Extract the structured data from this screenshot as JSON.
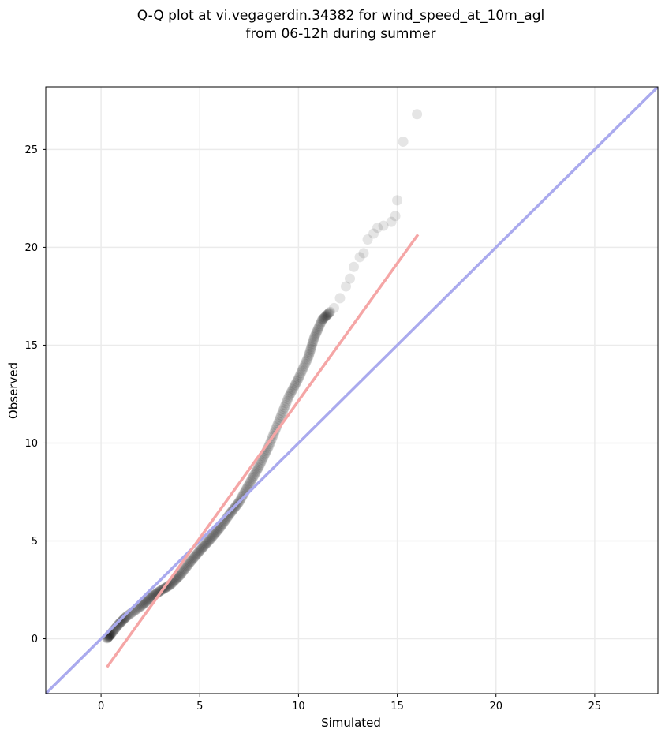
{
  "chart_data": {
    "type": "scatter",
    "title": [
      "Q-Q plot at vi.vegagerdin.34382 for wind_speed_at_10m_agl",
      "from 06-12h during summer"
    ],
    "xlabel": "Simulated",
    "ylabel": "Observed",
    "xlim": [
      -2.8,
      28.2
    ],
    "ylim": [
      -2.8,
      28.2
    ],
    "xticks": [
      0,
      5,
      10,
      15,
      20,
      25
    ],
    "yticks": [
      0,
      5,
      10,
      15,
      20,
      25
    ],
    "grid": true,
    "reference_lines": [
      {
        "kind": "identity",
        "color": "#aaaaee",
        "points": [
          [
            -2.8,
            -2.8
          ],
          [
            28.2,
            28.2
          ]
        ]
      },
      {
        "kind": "fit",
        "color": "#f5a6a6",
        "points": [
          [
            0.3,
            -1.45
          ],
          [
            16.05,
            20.65
          ]
        ]
      }
    ],
    "qq_curve": [
      [
        0.3,
        0.02
      ],
      [
        0.5,
        0.25
      ],
      [
        0.9,
        0.75
      ],
      [
        1.3,
        1.15
      ],
      [
        2.0,
        1.65
      ],
      [
        2.5,
        2.1
      ],
      [
        3.0,
        2.45
      ],
      [
        3.5,
        2.75
      ],
      [
        4.0,
        3.25
      ],
      [
        4.5,
        3.9
      ],
      [
        5.0,
        4.5
      ],
      [
        5.5,
        5.05
      ],
      [
        6.0,
        5.65
      ],
      [
        6.5,
        6.35
      ],
      [
        7.0,
        7.0
      ],
      [
        7.5,
        7.9
      ],
      [
        8.0,
        8.8
      ],
      [
        8.5,
        9.85
      ],
      [
        9.0,
        11.1
      ],
      [
        9.5,
        12.35
      ],
      [
        10.0,
        13.3
      ],
      [
        10.5,
        14.4
      ],
      [
        10.8,
        15.4
      ],
      [
        11.2,
        16.3
      ],
      [
        11.6,
        16.7
      ]
    ],
    "outliers": [
      [
        11.8,
        16.9
      ],
      [
        12.1,
        17.4
      ],
      [
        12.4,
        18.0
      ],
      [
        12.6,
        18.4
      ],
      [
        12.8,
        19.0
      ],
      [
        13.1,
        19.5
      ],
      [
        13.3,
        19.7
      ],
      [
        13.5,
        20.4
      ],
      [
        13.8,
        20.7
      ],
      [
        14.0,
        21.0
      ],
      [
        14.3,
        21.1
      ],
      [
        14.7,
        21.3
      ],
      [
        14.9,
        21.6
      ],
      [
        15.0,
        22.4
      ],
      [
        15.3,
        25.4
      ],
      [
        16.0,
        26.8
      ]
    ],
    "point_color": "#000000",
    "accent_colors": {
      "identity": "#aaaaee",
      "fit": "#f5a6a6",
      "grid": "#ebebeb"
    }
  }
}
